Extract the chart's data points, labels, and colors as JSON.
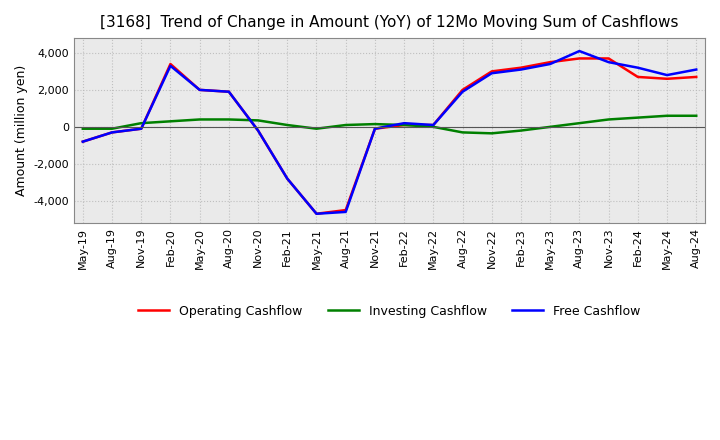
{
  "title": "[3168]  Trend of Change in Amount (YoY) of 12Mo Moving Sum of Cashflows",
  "ylabel": "Amount (million yen)",
  "ylim": [
    -5200,
    4800
  ],
  "yticks": [
    -4000,
    -2000,
    0,
    2000,
    4000
  ],
  "x_labels": [
    "May-19",
    "Aug-19",
    "Nov-19",
    "Feb-20",
    "May-20",
    "Aug-20",
    "Nov-20",
    "Feb-21",
    "May-21",
    "Aug-21",
    "Nov-21",
    "Feb-22",
    "May-22",
    "Aug-22",
    "Nov-22",
    "Feb-23",
    "May-23",
    "Aug-23",
    "Nov-23",
    "Feb-24",
    "May-24",
    "Aug-24"
  ],
  "operating": [
    -800,
    -300,
    -100,
    3400,
    2000,
    1900,
    -200,
    -2800,
    -4700,
    -4500,
    -100,
    100,
    100,
    2000,
    3000,
    3200,
    3500,
    3700,
    3700,
    2700,
    2600,
    2700
  ],
  "investing": [
    -100,
    -100,
    200,
    300,
    400,
    400,
    350,
    100,
    -100,
    100,
    150,
    100,
    0,
    -300,
    -350,
    -200,
    0,
    200,
    400,
    500,
    600,
    600
  ],
  "free": [
    -800,
    -300,
    -100,
    3300,
    2000,
    1900,
    -200,
    -2800,
    -4700,
    -4600,
    -100,
    200,
    100,
    1900,
    2900,
    3100,
    3400,
    4100,
    3500,
    3200,
    2800,
    3100
  ],
  "operating_color": "#FF0000",
  "investing_color": "#008000",
  "free_color": "#0000FF",
  "bg_color": "#FFFFFF",
  "plot_bg_color": "#EAEAEA",
  "grid_color": "#BBBBBB",
  "title_fontsize": 11,
  "label_fontsize": 9,
  "tick_fontsize": 8,
  "legend_fontsize": 9
}
